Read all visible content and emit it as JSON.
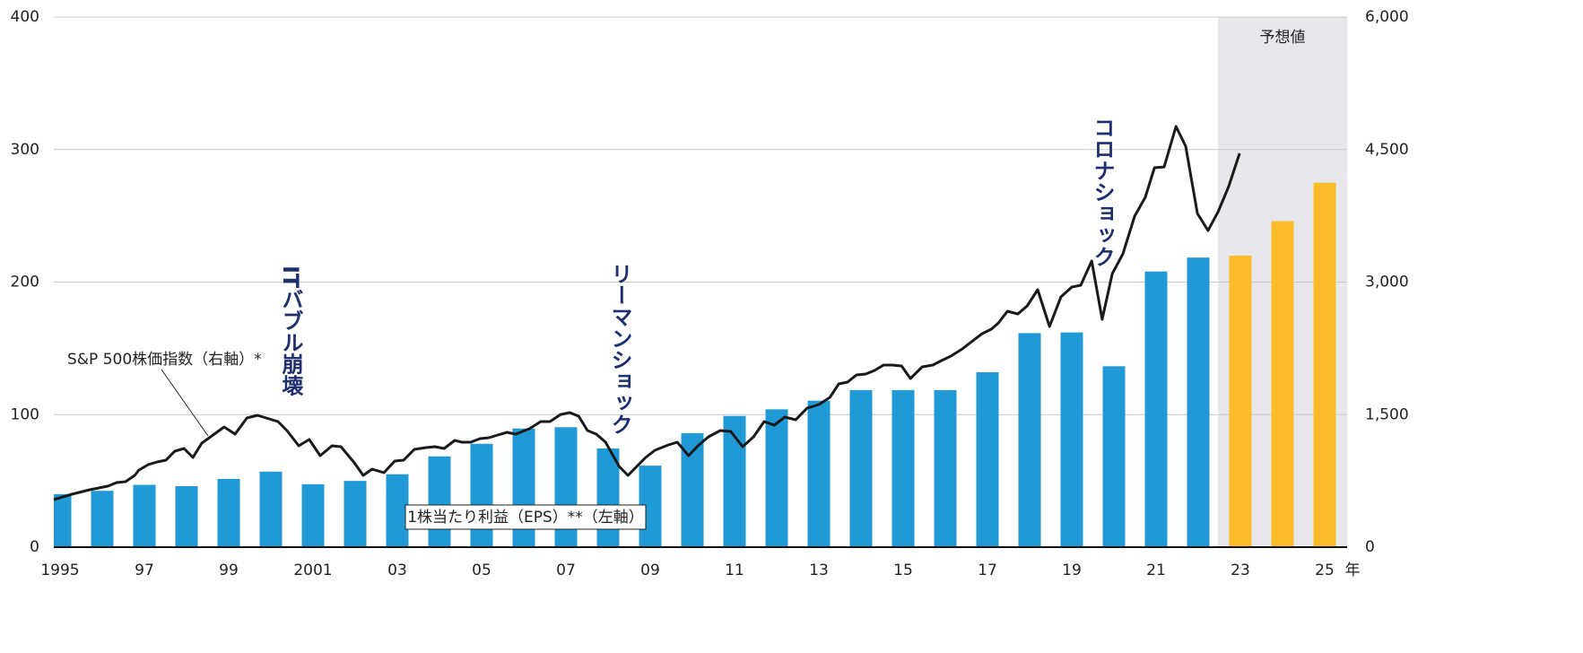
{
  "chart_data": {
    "type": "bar_line",
    "categories": [
      "1995",
      null,
      "97",
      null,
      "99",
      null,
      "2001",
      null,
      "03",
      null,
      "05",
      null,
      "07",
      null,
      "09",
      null,
      "11",
      null,
      "13",
      null,
      "15",
      null,
      "17",
      null,
      "19",
      null,
      "21",
      null,
      "23",
      null,
      "25"
    ],
    "x_unit": "年",
    "values": [
      40,
      42.5,
      47,
      46,
      51.5,
      57,
      47.5,
      50,
      55,
      68.5,
      78,
      89.5,
      90.5,
      74.5,
      61.5,
      86,
      99,
      104,
      110.5,
      118.5,
      118.5,
      118.5,
      132,
      161.5,
      162,
      136.5,
      208,
      218.5,
      220,
      246,
      275
    ],
    "colors": [
      "#1f9ad6",
      "#1f9ad6",
      "#1f9ad6",
      "#1f9ad6",
      "#1f9ad6",
      "#1f9ad6",
      "#1f9ad6",
      "#1f9ad6",
      "#1f9ad6",
      "#1f9ad6",
      "#1f9ad6",
      "#1f9ad6",
      "#1f9ad6",
      "#1f9ad6",
      "#1f9ad6",
      "#1f9ad6",
      "#1f9ad6",
      "#1f9ad6",
      "#1f9ad6",
      "#1f9ad6",
      "#1f9ad6",
      "#1f9ad6",
      "#1f9ad6",
      "#1f9ad6",
      "#1f9ad6",
      "#1f9ad6",
      "#1f9ad6",
      "#1f9ad6",
      "#fbbc2a",
      "#fbbc2a",
      "#fbbc2a"
    ],
    "bar_label": "1株当たり利益（EPS）**（左軸）",
    "line": {
      "name": "S&P 500株価指数（右軸）*",
      "color": "#1a1a1a",
      "axis": "y2",
      "x": [
        1994.85,
        1995.28,
        1995.7,
        1996.13,
        1996.34,
        1996.55,
        1996.77,
        1996.87,
        1997.09,
        1997.3,
        1997.51,
        1997.72,
        1997.94,
        1998.15,
        1998.36,
        1998.57,
        1998.89,
        1999.15,
        1999.43,
        1999.68,
        1999.96,
        2000.17,
        2000.38,
        2000.66,
        2000.91,
        2001.17,
        2001.45,
        2001.66,
        2001.98,
        2002.19,
        2002.4,
        2002.68,
        2002.94,
        2003.15,
        2003.4,
        2003.68,
        2003.89,
        2004.11,
        2004.36,
        2004.53,
        2004.74,
        2004.96,
        2005.17,
        2005.38,
        2005.6,
        2005.81,
        2006.13,
        2006.4,
        2006.62,
        2006.87,
        2007.09,
        2007.3,
        2007.51,
        2007.72,
        2007.94,
        2008.26,
        2008.47,
        2008.68,
        2008.89,
        2009.11,
        2009.43,
        2009.64,
        2009.91,
        2010.13,
        2010.38,
        2010.66,
        2010.91,
        2011.19,
        2011.45,
        2011.7,
        2011.94,
        2012.19,
        2012.45,
        2012.72,
        2013.0,
        2013.26,
        2013.47,
        2013.68,
        2013.89,
        2014.11,
        2014.32,
        2014.53,
        2014.74,
        2014.96,
        2015.17,
        2015.45,
        2015.7,
        2015.91,
        2016.13,
        2016.4,
        2016.62,
        2016.87,
        2017.09,
        2017.26,
        2017.47,
        2017.72,
        2017.94,
        2018.19,
        2018.47,
        2018.74,
        2019.0,
        2019.21,
        2019.47,
        2019.72,
        2019.96,
        2020.21,
        2020.49,
        2020.74,
        2020.96,
        2021.19,
        2021.47,
        2021.7,
        2021.98,
        2022.23,
        2022.47,
        2022.72,
        2022.98
      ],
      "values": [
        538,
        599,
        650,
        690,
        731,
        741,
        812,
        873,
        934,
        964,
        985,
        1086,
        1117,
        1015,
        1178,
        1249,
        1360,
        1279,
        1462,
        1492,
        1452,
        1421,
        1320,
        1147,
        1218,
        1036,
        1147,
        1137,
        954,
        812,
        883,
        843,
        975,
        985,
        1107,
        1127,
        1137,
        1117,
        1208,
        1188,
        1188,
        1228,
        1239,
        1269,
        1299,
        1279,
        1340,
        1421,
        1421,
        1502,
        1523,
        1482,
        1320,
        1279,
        1188,
        914,
        812,
        914,
        1015,
        1096,
        1157,
        1188,
        1036,
        1147,
        1249,
        1320,
        1310,
        1137,
        1249,
        1421,
        1381,
        1472,
        1442,
        1574,
        1614,
        1695,
        1848,
        1868,
        1949,
        1959,
        2000,
        2061,
        2061,
        2051,
        1909,
        2041,
        2061,
        2112,
        2162,
        2244,
        2325,
        2416,
        2467,
        2538,
        2670,
        2640,
        2731,
        2914,
        2497,
        2832,
        2944,
        2964,
        3239,
        2579,
        3096,
        3320,
        3746,
        3959,
        4294,
        4304,
        4761,
        4538,
        3777,
        3584,
        3797,
        4081,
        4457
      ]
    },
    "xlim": [
      1994.85,
      2025.53
    ],
    "ylim": [
      0,
      400
    ],
    "yticks": [
      0,
      100,
      200,
      300,
      400
    ],
    "y2lim": [
      0,
      6000
    ],
    "y2ticks": [
      0,
      {
        "value": 1500,
        "label": "1,500"
      },
      {
        "value": 3000,
        "label": "3,000"
      },
      {
        "value": 4500,
        "label": "4,500"
      },
      {
        "value": 6000,
        "label": "6,000"
      }
    ],
    "grid": true,
    "annotations": [
      "ITバブル崩壊",
      "リーマンショック",
      "コロナショック"
    ],
    "forecast_label": "予想値"
  }
}
